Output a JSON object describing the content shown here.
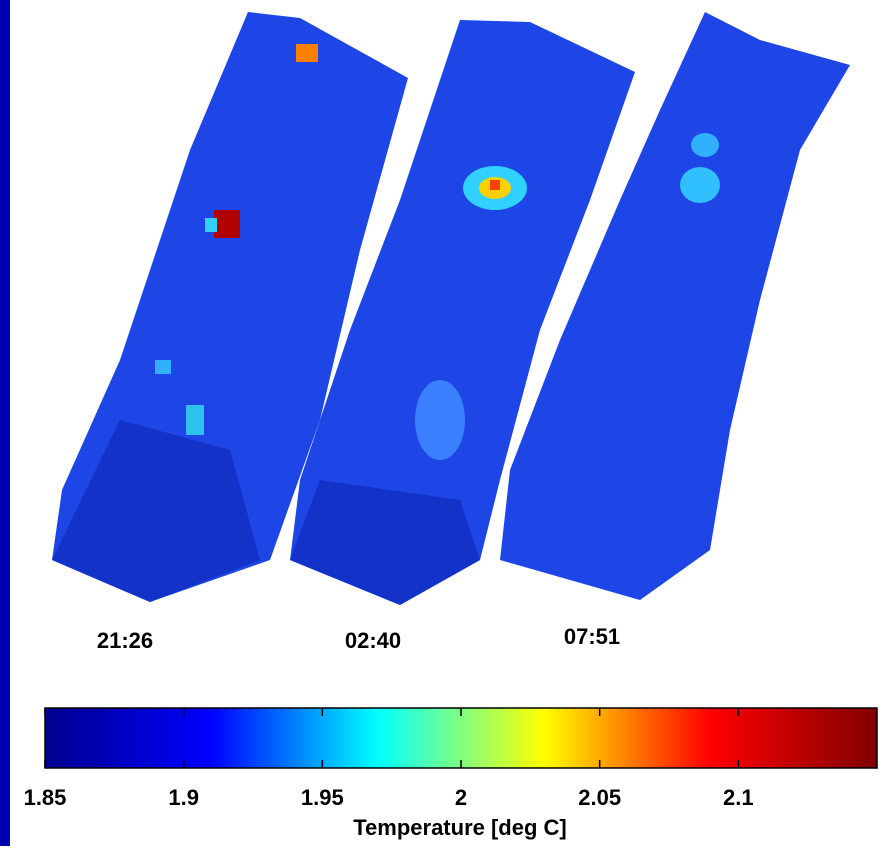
{
  "chart_data": {
    "type": "colorbar",
    "panel_labels": [
      "21:26",
      "02:40",
      "07:51"
    ],
    "xlabel": "Temperature [deg C]",
    "xlim": [
      1.85,
      2.15
    ],
    "xticks": [
      1.85,
      1.9,
      1.95,
      2,
      2.05,
      2.1
    ],
    "colormap": [
      "#00008f",
      "#0000ff",
      "#00ffff",
      "#ffff00",
      "#ff0000",
      "#800000"
    ]
  }
}
